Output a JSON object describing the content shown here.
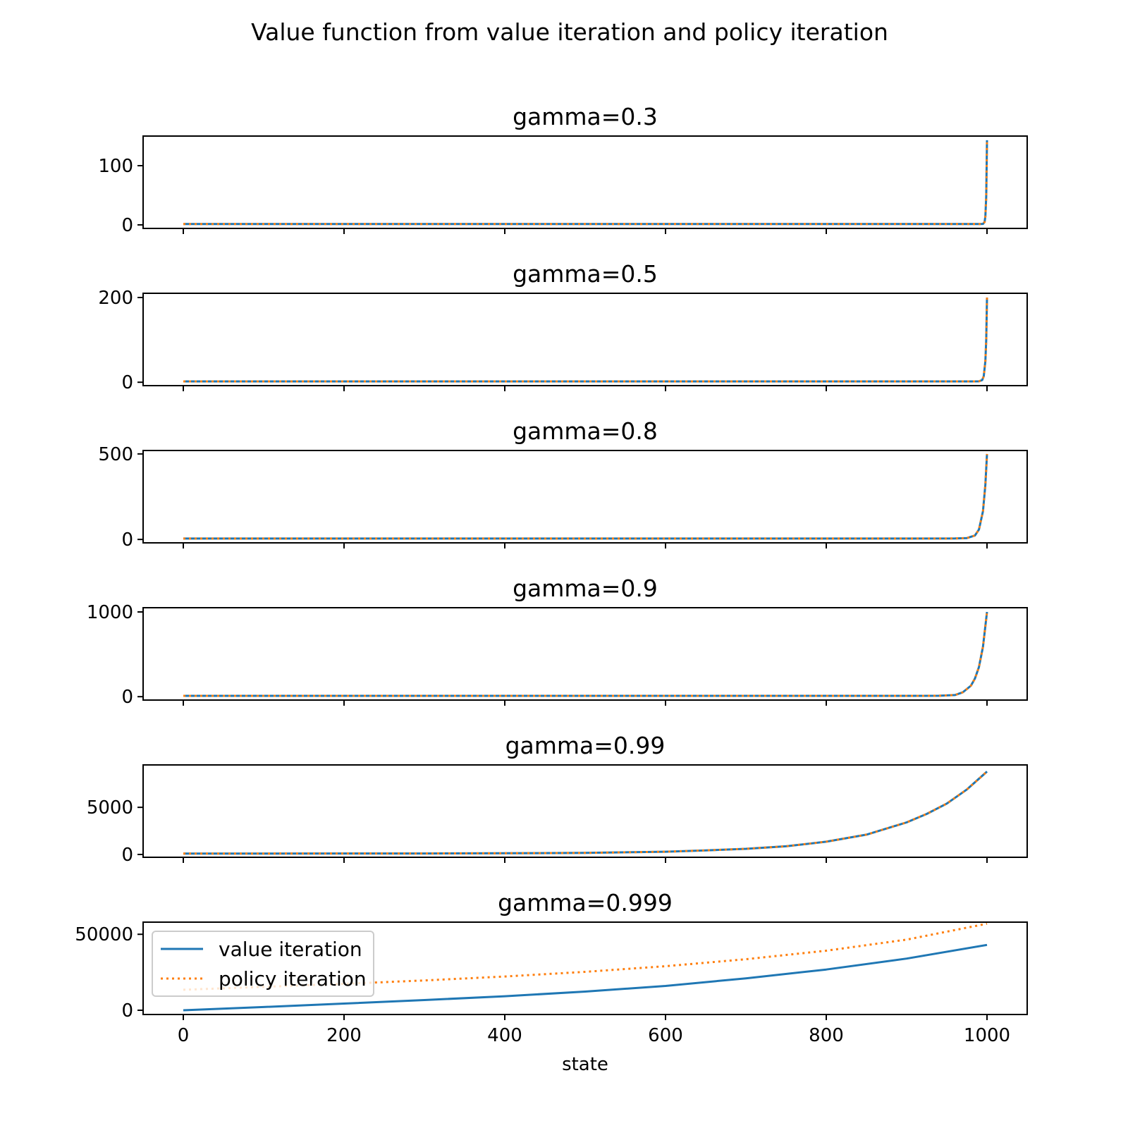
{
  "suptitle": "Value function from value iteration and policy iteration",
  "colors": {
    "value_iteration": "#1f77b4",
    "policy_iteration": "#ff7f0e"
  },
  "chart_data": [
    {
      "type": "line",
      "title": "gamma=0.3",
      "xlabel": "",
      "xlim": [
        -50,
        1050
      ],
      "ylim": [
        -6,
        150
      ],
      "xticks": [
        0,
        200,
        400,
        600,
        800,
        1000
      ],
      "xtick_labels_shown": false,
      "yticks": [
        0,
        100
      ],
      "grid": false,
      "x": [
        0,
        100,
        200,
        300,
        400,
        500,
        600,
        700,
        800,
        900,
        990,
        995,
        997,
        998,
        999,
        1000
      ],
      "series": [
        {
          "name": "value iteration",
          "style": "solid",
          "values": [
            1.43,
            1.43,
            1.43,
            1.43,
            1.43,
            1.43,
            1.43,
            1.43,
            1.43,
            1.43,
            1.44,
            1.6,
            4.8,
            14.5,
            48.1,
            143
          ]
        },
        {
          "name": "policy iteration",
          "style": "dotted",
          "values": [
            1.43,
            1.43,
            1.43,
            1.43,
            1.43,
            1.43,
            1.43,
            1.43,
            1.43,
            1.43,
            1.44,
            1.6,
            4.8,
            14.5,
            48.1,
            143
          ]
        }
      ]
    },
    {
      "type": "line",
      "title": "gamma=0.5",
      "xlabel": "",
      "xlim": [
        -50,
        1050
      ],
      "ylim": [
        -8,
        210
      ],
      "xticks": [
        0,
        200,
        400,
        600,
        800,
        1000
      ],
      "xtick_labels_shown": false,
      "yticks": [
        0,
        200
      ],
      "grid": false,
      "x": [
        0,
        100,
        200,
        300,
        400,
        500,
        600,
        700,
        800,
        900,
        980,
        990,
        994,
        996,
        998,
        999,
        1000
      ],
      "series": [
        {
          "name": "value iteration",
          "style": "solid",
          "values": [
            2,
            2,
            2,
            2,
            2,
            2,
            2,
            2,
            2,
            2,
            2,
            2.2,
            5.1,
            14.5,
            50,
            100,
            200
          ]
        },
        {
          "name": "policy iteration",
          "style": "dotted",
          "values": [
            2,
            2,
            2,
            2,
            2,
            2,
            2,
            2,
            2,
            2,
            2,
            2.2,
            5.1,
            14.5,
            50,
            100,
            200
          ]
        }
      ]
    },
    {
      "type": "line",
      "title": "gamma=0.8",
      "xlabel": "",
      "xlim": [
        -50,
        1050
      ],
      "ylim": [
        -20,
        520
      ],
      "xticks": [
        0,
        200,
        400,
        600,
        800,
        1000
      ],
      "xtick_labels_shown": false,
      "yticks": [
        0,
        500
      ],
      "grid": false,
      "x": [
        0,
        100,
        200,
        300,
        400,
        500,
        600,
        700,
        800,
        900,
        960,
        975,
        985,
        990,
        995,
        998,
        1000
      ],
      "series": [
        {
          "name": "value iteration",
          "style": "solid",
          "values": [
            5,
            5,
            5,
            5,
            5,
            5,
            5,
            5,
            5,
            5,
            5.6,
            7.9,
            23,
            58,
            165,
            320,
            500
          ]
        },
        {
          "name": "policy iteration",
          "style": "dotted",
          "values": [
            5,
            5,
            5,
            5,
            5,
            5,
            5,
            5,
            5,
            5,
            5.6,
            7.9,
            23,
            58,
            165,
            320,
            500
          ]
        }
      ]
    },
    {
      "type": "line",
      "title": "gamma=0.9",
      "xlabel": "",
      "xlim": [
        -50,
        1050
      ],
      "ylim": [
        -40,
        1050
      ],
      "xticks": [
        0,
        200,
        400,
        600,
        800,
        1000
      ],
      "xtick_labels_shown": false,
      "yticks": [
        0,
        1000
      ],
      "grid": false,
      "x": [
        0,
        100,
        200,
        300,
        400,
        500,
        600,
        700,
        800,
        900,
        940,
        960,
        970,
        980,
        985,
        990,
        995,
        1000
      ],
      "series": [
        {
          "name": "value iteration",
          "style": "solid",
          "values": [
            10,
            10,
            10,
            10,
            10,
            10,
            10,
            10,
            10,
            10,
            11,
            19,
            52,
            130,
            215,
            350,
            590,
            1000
          ]
        },
        {
          "name": "policy iteration",
          "style": "dotted",
          "values": [
            10,
            10,
            10,
            10,
            10,
            10,
            10,
            10,
            10,
            10,
            11,
            19,
            52,
            130,
            215,
            350,
            590,
            1000
          ]
        }
      ]
    },
    {
      "type": "line",
      "title": "gamma=0.99",
      "xlabel": "",
      "xlim": [
        -50,
        1050
      ],
      "ylim": [
        -300,
        9500
      ],
      "xticks": [
        0,
        200,
        400,
        600,
        800,
        1000
      ],
      "xtick_labels_shown": false,
      "yticks": [
        0,
        5000
      ],
      "grid": false,
      "x": [
        0,
        100,
        200,
        300,
        400,
        500,
        600,
        650,
        700,
        750,
        800,
        850,
        900,
        925,
        950,
        975,
        1000
      ],
      "series": [
        {
          "name": "value iteration",
          "style": "solid",
          "values": [
            100,
            100,
            101,
            104,
            124,
            166,
            290,
            430,
            600,
            870,
            1350,
            2100,
            3400,
            4300,
            5400,
            6900,
            8800
          ]
        },
        {
          "name": "policy iteration",
          "style": "dotted",
          "values": [
            100,
            100,
            101,
            104,
            124,
            166,
            290,
            430,
            600,
            870,
            1350,
            2100,
            3400,
            4300,
            5400,
            6900,
            8800
          ]
        }
      ]
    },
    {
      "type": "line",
      "title": "gamma=0.999",
      "xlabel": "state",
      "xlim": [
        -50,
        1050
      ],
      "ylim": [
        -2800,
        58000
      ],
      "xticks": [
        0,
        200,
        400,
        600,
        800,
        1000
      ],
      "xtick_labels": [
        "0",
        "200",
        "400",
        "600",
        "800",
        "1000"
      ],
      "yticks": [
        0,
        50000
      ],
      "grid": false,
      "legend": {
        "position": "upper-left",
        "entries": [
          "value iteration",
          "policy iteration"
        ]
      },
      "x": [
        0,
        100,
        200,
        300,
        400,
        500,
        600,
        700,
        800,
        900,
        1000
      ],
      "series": [
        {
          "name": "value iteration",
          "style": "solid",
          "values": [
            0,
            2100,
            4400,
            6700,
            9200,
            12300,
            16000,
            21000,
            26800,
            34000,
            43000
          ]
        },
        {
          "name": "policy iteration",
          "style": "dotted",
          "values": [
            13500,
            15400,
            17400,
            19600,
            22200,
            25300,
            29000,
            33600,
            39200,
            46500,
            57000
          ]
        }
      ]
    }
  ]
}
